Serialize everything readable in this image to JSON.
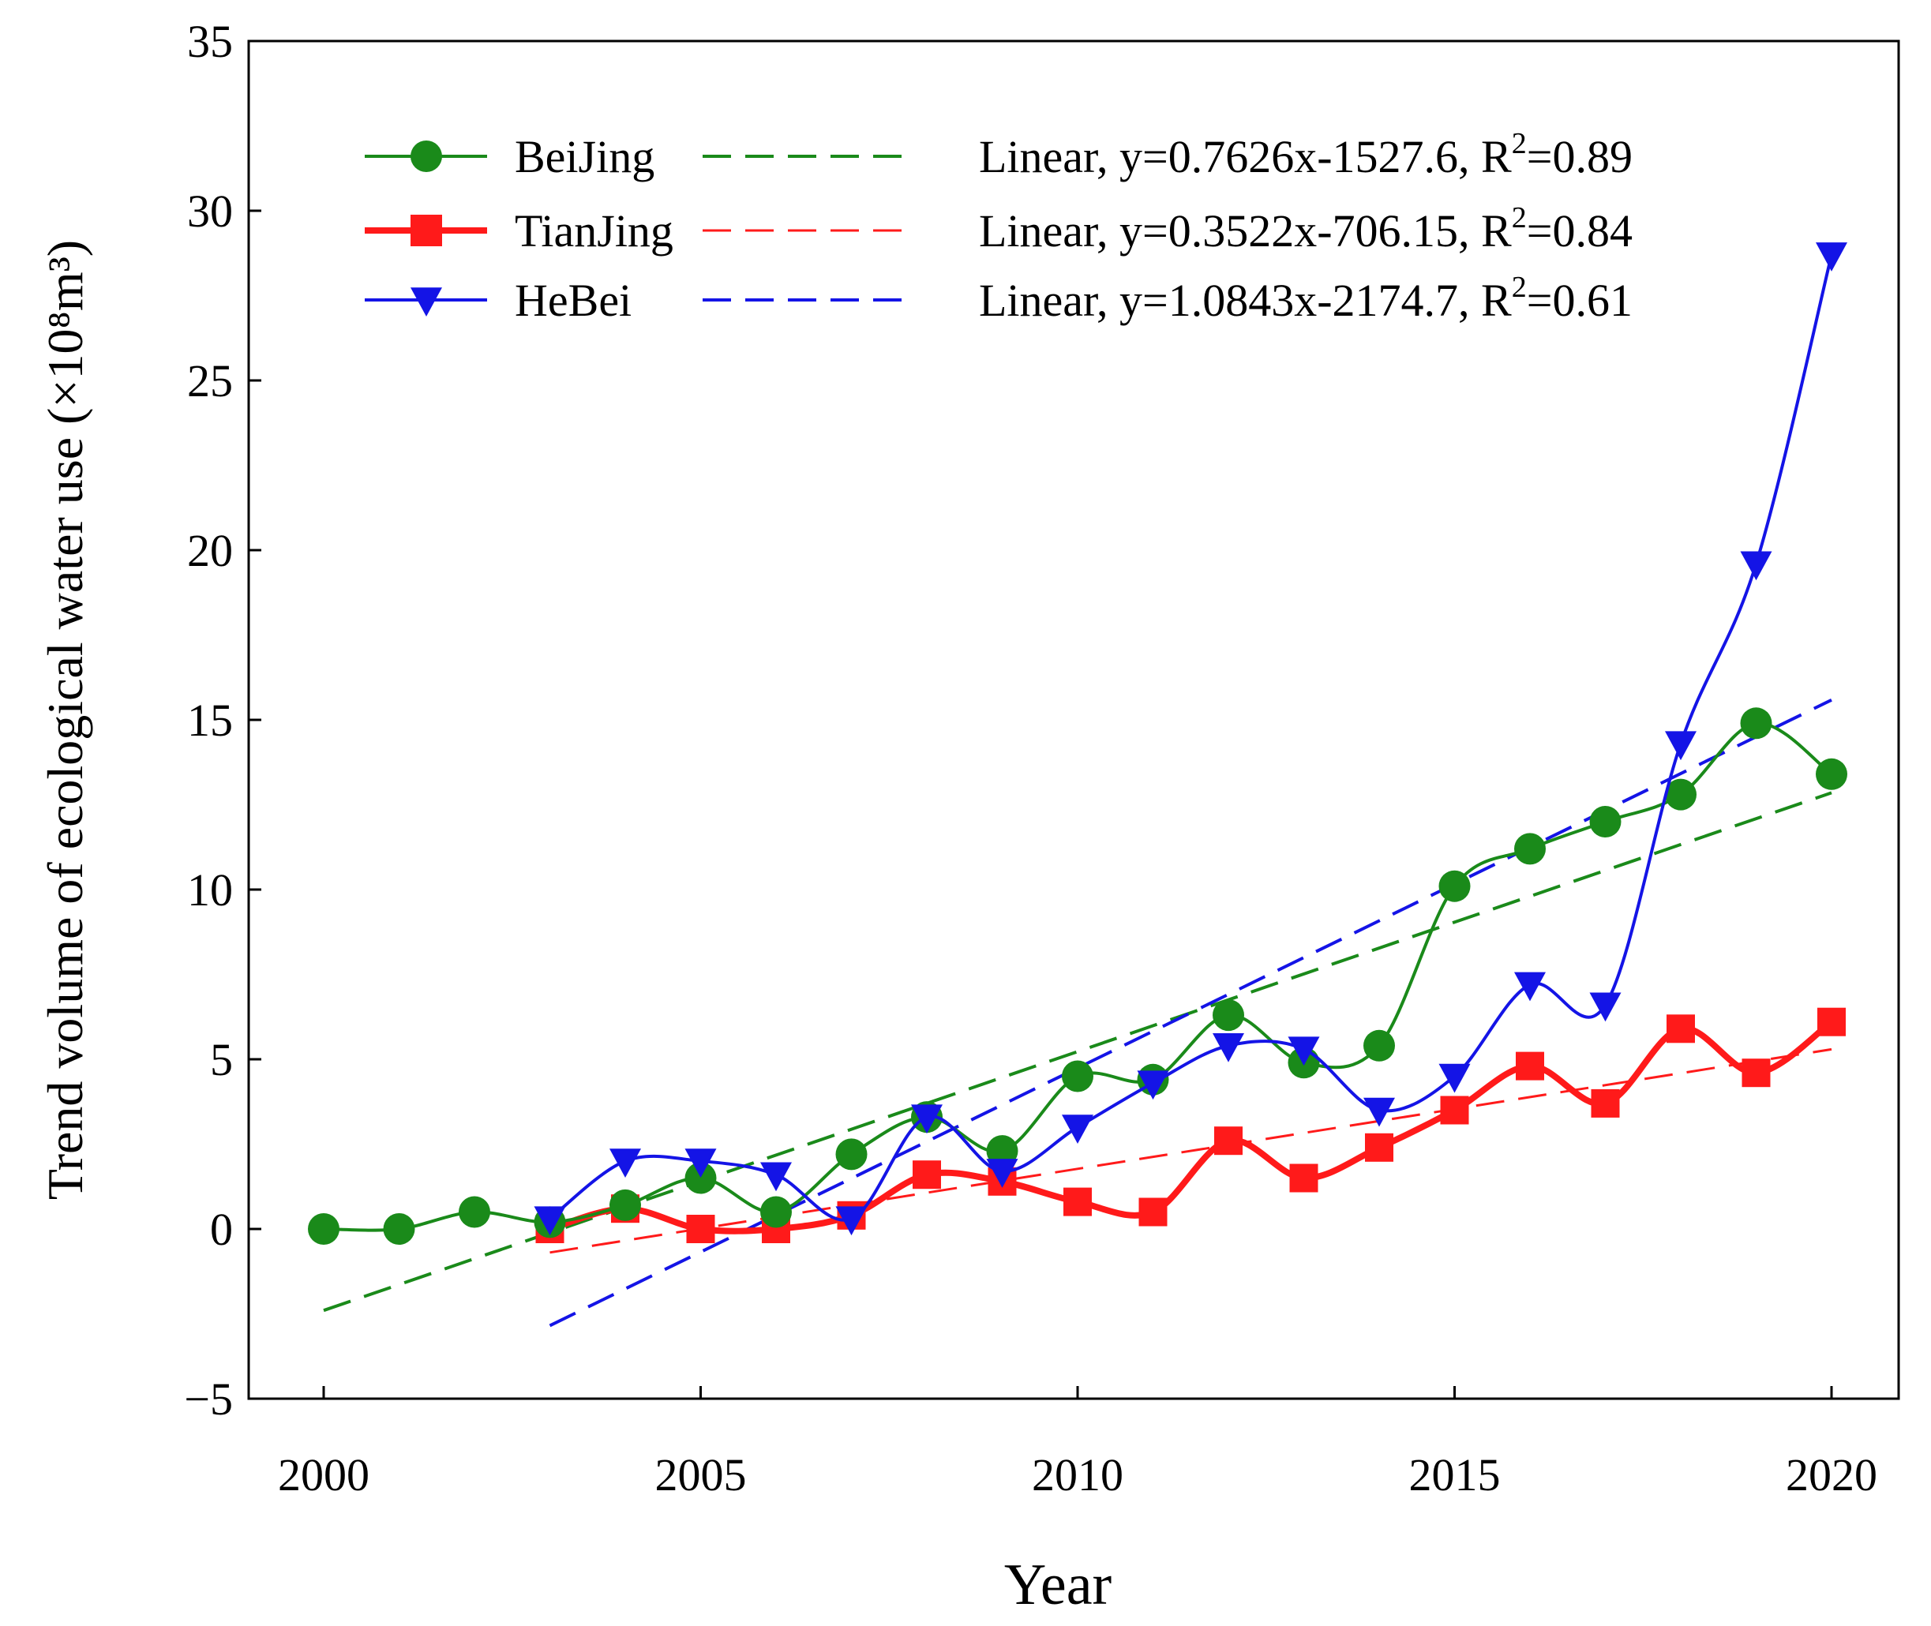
{
  "chart_data": {
    "type": "line",
    "xlabel": "Year",
    "ylabel": "Trend volume of ecological water use (×10⁸m³)",
    "xlim": [
      1999,
      2021.5
    ],
    "ylim": [
      -5,
      35
    ],
    "xticks": [
      2000,
      2005,
      2010,
      2015,
      2020
    ],
    "yticks": [
      -5,
      0,
      5,
      10,
      15,
      20,
      25,
      30,
      35
    ],
    "grid": false,
    "legend_position": "top-left",
    "series": [
      {
        "name": "BeiJing",
        "color": "#1a8a1a",
        "marker": "circle",
        "x": [
          2000,
          2001,
          2002,
          2003,
          2004,
          2005,
          2006,
          2007,
          2008,
          2009,
          2010,
          2011,
          2012,
          2013,
          2014,
          2015,
          2016,
          2017,
          2018,
          2019,
          2020
        ],
        "y": [
          0.0,
          0.0,
          0.5,
          0.2,
          0.7,
          1.5,
          0.5,
          2.2,
          3.3,
          2.3,
          4.5,
          4.4,
          6.3,
          4.9,
          5.4,
          10.1,
          11.2,
          12.0,
          12.8,
          14.9,
          13.4
        ],
        "trend_label": "Linear, y=0.7626x-1527.6, R",
        "r2_text": "=0.89",
        "trend": {
          "slope": 0.7626,
          "intercept": -1527.6,
          "x_range": [
            2000,
            2020
          ]
        }
      },
      {
        "name": "TianJing",
        "color": "#ff1a1a",
        "marker": "square",
        "x": [
          2003,
          2004,
          2005,
          2006,
          2007,
          2008,
          2009,
          2010,
          2011,
          2012,
          2013,
          2014,
          2015,
          2016,
          2017,
          2018,
          2019,
          2020
        ],
        "y": [
          0.0,
          0.6,
          0.0,
          0.0,
          0.4,
          1.6,
          1.4,
          0.8,
          0.5,
          2.6,
          1.5,
          2.4,
          3.5,
          4.8,
          3.7,
          5.9,
          4.6,
          6.1
        ],
        "trend_label": "Linear, y=0.3522x-706.15, R",
        "r2_text": "=0.84",
        "trend": {
          "slope": 0.3522,
          "intercept": -706.15,
          "x_range": [
            2003,
            2020
          ]
        }
      },
      {
        "name": "HeBei",
        "color": "#1414e6",
        "marker": "triangle-down",
        "x": [
          2003,
          2004,
          2005,
          2006,
          2007,
          2008,
          2009,
          2010,
          2011,
          2012,
          2013,
          2014,
          2015,
          2016,
          2017,
          2018,
          2019,
          2020
        ],
        "y": [
          0.3,
          2.0,
          2.0,
          1.6,
          0.3,
          3.3,
          1.7,
          3.0,
          4.3,
          5.4,
          5.3,
          3.5,
          4.5,
          7.2,
          6.6,
          14.3,
          19.6,
          28.7
        ],
        "trend_label": "Linear, y=1.0843x-2174.7, R",
        "r2_text": "=0.61",
        "trend": {
          "slope": 1.0843,
          "intercept": -2174.7,
          "x_range": [
            2003,
            2020
          ]
        }
      }
    ]
  }
}
